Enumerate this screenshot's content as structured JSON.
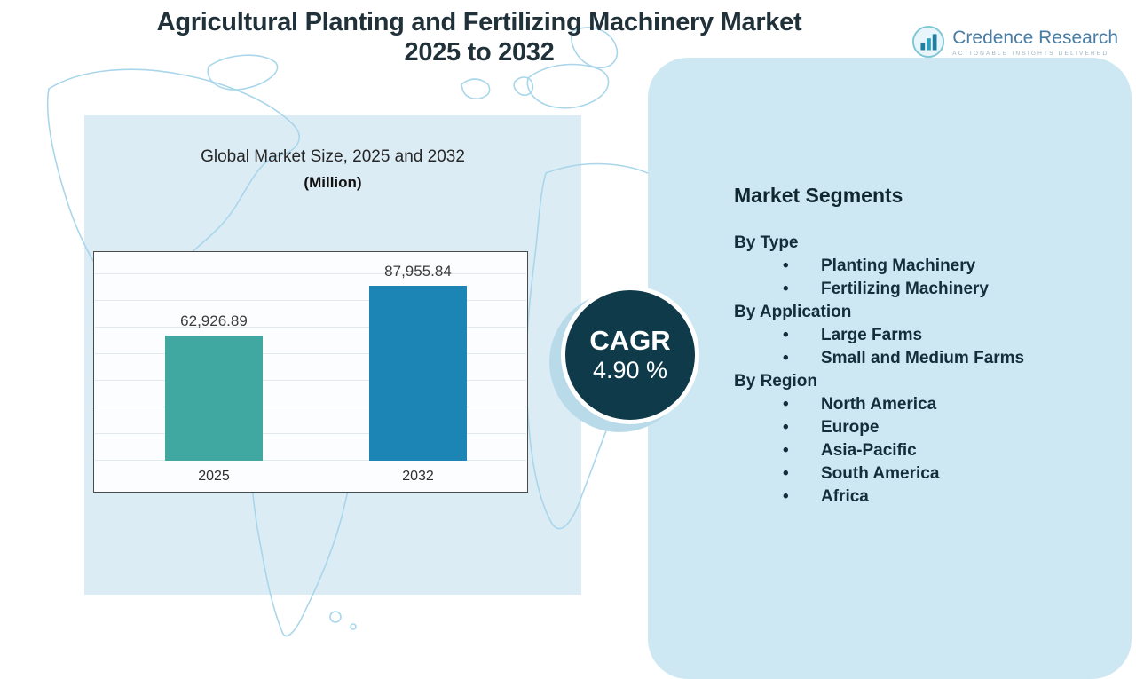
{
  "header": {
    "title_line1": "Agricultural Planting and Fertilizing Machinery Market",
    "title_line2": "2025 to 2032"
  },
  "logo": {
    "name": "Credence Research",
    "tagline": "Actionable Insights Delivered"
  },
  "chart": {
    "title": "Global Market Size, 2025 and 2032",
    "subtitle": "(Million)"
  },
  "chart_data": {
    "type": "bar",
    "title": "Global Market Size, 2025 and 2032 (Million)",
    "categories": [
      "2025",
      "2032"
    ],
    "values": [
      62926.89,
      87955.84
    ],
    "labels": [
      "62,926.89",
      "87,955.84"
    ],
    "colors": [
      "#41a8a1",
      "#1c85b5"
    ],
    "xlabel": "",
    "ylabel": "",
    "ylim": [
      0,
      90000
    ],
    "grid": true,
    "legend": "none"
  },
  "cagr": {
    "label": "CAGR",
    "value": "4.90 %"
  },
  "segments": {
    "title": "Market Segments",
    "groups": [
      {
        "label": "By Type",
        "items": [
          "Planting Machinery",
          "Fertilizing Machinery"
        ]
      },
      {
        "label": "By Application",
        "items": [
          "Large Farms",
          "Small and Medium Farms"
        ]
      },
      {
        "label": "By Region",
        "items": [
          "North America",
          "Europe",
          "Asia-Pacific",
          "South America",
          "Africa"
        ]
      }
    ]
  },
  "colors": {
    "bar_2025": "#41a8a1",
    "bar_2032": "#1c85b5",
    "cagr_circle": "#0e3a49",
    "left_panel": "#dbecf5",
    "right_panel": "#cde8f3",
    "map_outline": "#a9d6ea",
    "title_text": "#20313a"
  }
}
